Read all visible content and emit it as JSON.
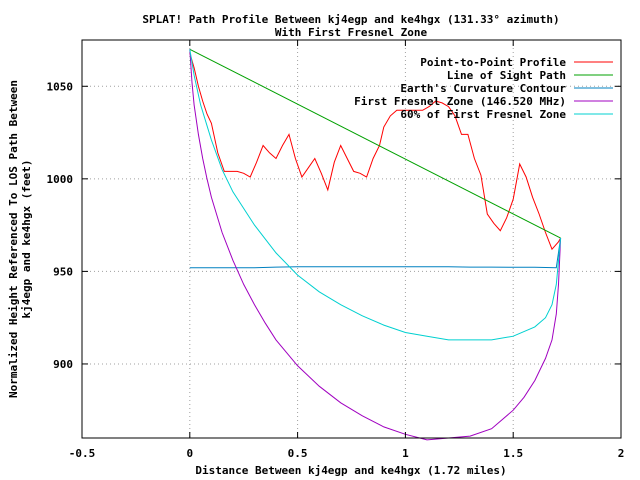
{
  "chart_data": {
    "type": "line",
    "title_line1": "SPLAT! Path Profile Between kj4egp and ke4hgx (131.33° azimuth)",
    "title_line2": "With First Fresnel Zone",
    "xlabel": "Distance Between kj4egp and ke4hgx (1.72 miles)",
    "ylabel_line1": "Normalized Height Referenced To LOS Path Between",
    "ylabel_line2": "kj4egp and ke4hgx (feet)",
    "xlim": [
      -0.5,
      2
    ],
    "ylim": [
      860,
      1075
    ],
    "xticks": [
      -0.5,
      0,
      0.5,
      1,
      1.5,
      2
    ],
    "xtick_labels": [
      "-0.5",
      "0",
      "0.5",
      "1",
      "1.5",
      "2"
    ],
    "yticks": [
      900,
      950,
      1000,
      1050
    ],
    "ytick_labels": [
      "900",
      "950",
      "1000",
      "1050"
    ],
    "grid": true,
    "legend_position": "top-right",
    "series": [
      {
        "name": "Point-to-Point Profile",
        "color": "#ff0000",
        "x": [
          0,
          0.02,
          0.04,
          0.06,
          0.08,
          0.1,
          0.13,
          0.16,
          0.19,
          0.22,
          0.25,
          0.28,
          0.31,
          0.34,
          0.37,
          0.4,
          0.43,
          0.46,
          0.49,
          0.52,
          0.55,
          0.58,
          0.61,
          0.64,
          0.67,
          0.7,
          0.73,
          0.76,
          0.79,
          0.82,
          0.85,
          0.88,
          0.9,
          0.93,
          0.96,
          0.99,
          1.02,
          1.05,
          1.08,
          1.11,
          1.14,
          1.17,
          1.2,
          1.23,
          1.26,
          1.29,
          1.32,
          1.35,
          1.38,
          1.41,
          1.44,
          1.47,
          1.5,
          1.53,
          1.56,
          1.59,
          1.62,
          1.65,
          1.68,
          1.71,
          1.72
        ],
        "y": [
          1068,
          1060,
          1050,
          1042,
          1035,
          1030,
          1014,
          1004,
          1004,
          1004,
          1003,
          1001,
          1009,
          1018,
          1014,
          1011,
          1018,
          1024,
          1011,
          1001,
          1006,
          1011,
          1003,
          994,
          1009,
          1018,
          1011,
          1004,
          1003,
          1001,
          1011,
          1018,
          1028,
          1034,
          1037,
          1037,
          1037,
          1037,
          1037,
          1039,
          1042,
          1041,
          1039,
          1034,
          1024,
          1024,
          1011,
          1002,
          981,
          976,
          972,
          979,
          989,
          1008,
          1001,
          990,
          981,
          971,
          962,
          966,
          968
        ]
      },
      {
        "name": "Line of Sight Path",
        "color": "#00a000",
        "x": [
          0,
          1.72
        ],
        "y": [
          1070,
          968
        ]
      },
      {
        "name": "Earth's Curvature Contour",
        "color": "#0080c0",
        "x": [
          0,
          0.1,
          0.2,
          0.3,
          0.4,
          0.5,
          0.6,
          0.7,
          0.8,
          0.9,
          1.0,
          1.1,
          1.2,
          1.3,
          1.4,
          1.5,
          1.6,
          1.7,
          1.72
        ],
        "y": [
          952,
          952,
          952,
          952,
          952.3,
          952.5,
          952.5,
          952.5,
          952.5,
          952.5,
          952.5,
          952.5,
          952.5,
          952.3,
          952.3,
          952.2,
          952.2,
          952,
          968
        ]
      },
      {
        "name": "First Fresnel Zone (146.520 MHz)",
        "color": "#a000c0",
        "x": [
          0,
          0.01,
          0.02,
          0.04,
          0.06,
          0.08,
          0.1,
          0.15,
          0.2,
          0.25,
          0.3,
          0.35,
          0.4,
          0.5,
          0.6,
          0.7,
          0.8,
          0.9,
          1.0,
          1.1,
          1.2,
          1.3,
          1.4,
          1.5,
          1.55,
          1.6,
          1.65,
          1.68,
          1.7,
          1.71,
          1.72
        ],
        "y": [
          1070,
          1052,
          1040,
          1024,
          1011,
          1000,
          990,
          971,
          956,
          943,
          932,
          922,
          913,
          899,
          888,
          879,
          872,
          866,
          862,
          859,
          860,
          861,
          865,
          875,
          882,
          891,
          903,
          913,
          927,
          943,
          968
        ]
      },
      {
        "name": "60% of First Fresnel Zone",
        "color": "#00d0d0",
        "x": [
          0,
          0.02,
          0.05,
          0.1,
          0.15,
          0.2,
          0.3,
          0.4,
          0.5,
          0.6,
          0.7,
          0.8,
          0.9,
          1.0,
          1.1,
          1.2,
          1.3,
          1.4,
          1.5,
          1.6,
          1.65,
          1.68,
          1.7,
          1.72
        ],
        "y": [
          1070,
          1056,
          1040,
          1021,
          1005,
          993,
          975,
          960,
          948,
          939,
          932,
          926,
          921,
          917,
          915,
          913,
          913,
          913,
          915,
          920,
          925,
          932,
          943,
          968
        ]
      }
    ]
  }
}
